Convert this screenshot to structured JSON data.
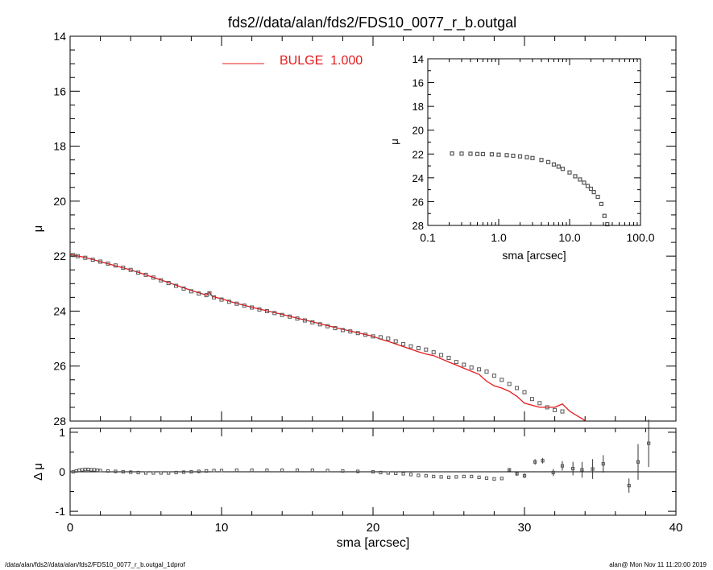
{
  "title": "fds2//data/alan/fds2/FDS10_0077_r_b.outgal",
  "footer": {
    "left": "/data/alan/fds2//data/alan/fds2/FDS10_0077_r_b.outgal_1dprof",
    "right": "alan@  Mon Nov 11 11:20:00 2019"
  },
  "colors": {
    "model": "#e8191c",
    "data": "#555555",
    "axes": "#000000"
  },
  "chart_data": [
    {
      "id": "main",
      "type": "scatter",
      "xlabel": "",
      "ylabel": "μ",
      "xlim": [
        0,
        40
      ],
      "ylim": [
        28,
        14
      ],
      "yticks": [
        14,
        16,
        18,
        20,
        22,
        24,
        26,
        28
      ],
      "ytick_labels": [
        "14",
        "16",
        "18",
        "20",
        "22",
        "24",
        "26",
        "28"
      ],
      "legend": {
        "position": "top-left",
        "label": "BULGE  1.000"
      },
      "series": [
        {
          "kind": "data-points",
          "x": [
            0.2,
            0.5,
            1.0,
            1.5,
            2.0,
            2.5,
            3.0,
            3.5,
            4.0,
            4.5,
            5.0,
            5.5,
            6.0,
            6.5,
            7.0,
            7.5,
            8.0,
            8.5,
            9.0,
            9.2,
            9.5,
            10.0,
            10.5,
            11.0,
            11.5,
            12.0,
            12.5,
            13.0,
            13.5,
            14.0,
            14.5,
            15.0,
            15.5,
            16.0,
            16.5,
            17.0,
            17.5,
            18.0,
            18.5,
            19.0,
            19.5,
            20.0,
            20.5,
            21.0,
            21.5,
            22.0,
            22.5,
            23.0,
            23.5,
            24.0,
            24.5,
            25.0,
            25.5,
            26.0,
            26.5,
            27.0,
            27.5,
            28.0,
            28.5,
            29.0,
            29.5,
            30.0,
            30.5,
            31.0,
            31.5,
            32.0,
            32.5
          ],
          "y": [
            21.96,
            22.0,
            22.06,
            22.13,
            22.2,
            22.27,
            22.34,
            22.42,
            22.5,
            22.6,
            22.68,
            22.78,
            22.88,
            22.98,
            23.08,
            23.18,
            23.28,
            23.36,
            23.42,
            23.35,
            23.5,
            23.58,
            23.66,
            23.73,
            23.8,
            23.87,
            23.94,
            24.0,
            24.07,
            24.14,
            24.2,
            24.27,
            24.34,
            24.41,
            24.48,
            24.55,
            24.62,
            24.69,
            24.74,
            24.8,
            24.86,
            24.92,
            24.95,
            25.0,
            25.1,
            25.2,
            25.28,
            25.35,
            25.4,
            25.5,
            25.6,
            25.7,
            25.85,
            25.95,
            26.05,
            26.12,
            26.2,
            26.35,
            26.5,
            26.65,
            26.8,
            26.95,
            27.2,
            27.35,
            27.5,
            27.6,
            27.65
          ]
        },
        {
          "kind": "model-line",
          "name": "BULGE",
          "x": [
            0.0,
            1.0,
            2.0,
            3.0,
            4.0,
            5.0,
            6.0,
            7.0,
            8.0,
            9.0,
            9.2,
            9.4,
            10.0,
            11.0,
            12.0,
            13.0,
            14.0,
            15.0,
            16.0,
            17.0,
            18.0,
            19.0,
            20.0,
            20.5,
            21.0,
            22.0,
            23.0,
            23.5,
            24.0,
            25.0,
            26.0,
            27.0,
            27.5,
            28.0,
            28.5,
            29.0,
            29.5,
            30.0,
            31.0,
            32.0,
            32.5,
            33.0,
            34.0
          ],
          "y": [
            21.93,
            22.05,
            22.2,
            22.35,
            22.5,
            22.68,
            22.87,
            23.06,
            23.25,
            23.42,
            23.32,
            23.47,
            23.55,
            23.72,
            23.86,
            23.99,
            24.12,
            24.26,
            24.39,
            24.53,
            24.66,
            24.79,
            24.92,
            25.02,
            25.1,
            25.29,
            25.48,
            25.56,
            25.62,
            25.85,
            26.08,
            26.3,
            26.55,
            26.72,
            26.8,
            26.92,
            27.1,
            27.35,
            27.5,
            27.5,
            27.38,
            27.65,
            27.98
          ]
        }
      ]
    },
    {
      "id": "inset",
      "type": "scatter",
      "xlabel": "sma [arcsec]",
      "ylabel": "μ",
      "xscale": "log",
      "xlim": [
        0.1,
        100.0
      ],
      "ylim": [
        28,
        14
      ],
      "xticks": [
        0.1,
        1.0,
        10.0,
        100.0
      ],
      "xtick_labels": [
        "0.1",
        "1.0",
        "10.0",
        "100.0"
      ],
      "yticks": [
        14,
        16,
        18,
        20,
        22,
        24,
        26,
        28
      ],
      "ytick_labels": [
        "14",
        "16",
        "18",
        "20",
        "22",
        "24",
        "26",
        "28"
      ],
      "series": [
        {
          "kind": "data-points",
          "x": [
            0.22,
            0.3,
            0.4,
            0.5,
            0.6,
            0.8,
            1.0,
            1.3,
            1.6,
            2.0,
            2.5,
            3.0,
            4.0,
            5.0,
            6.0,
            7.0,
            8.0,
            10.0,
            12.0,
            14.0,
            16.0,
            18.0,
            20.0,
            22.0,
            25.0,
            28.0,
            31.0,
            34.0
          ],
          "y": [
            21.96,
            21.97,
            21.98,
            22.0,
            22.01,
            22.03,
            22.06,
            22.1,
            22.15,
            22.2,
            22.27,
            22.34,
            22.5,
            22.68,
            22.88,
            23.06,
            23.25,
            23.55,
            23.87,
            24.14,
            24.41,
            24.69,
            24.92,
            25.2,
            25.6,
            26.2,
            27.2,
            27.9
          ]
        }
      ]
    },
    {
      "id": "residual",
      "type": "scatter",
      "xlabel": "sma [arcsec]",
      "ylabel": "Δ μ",
      "xlim": [
        0,
        40
      ],
      "ylim": [
        -1.1,
        1.1
      ],
      "xticks": [
        0,
        10,
        20,
        30,
        40
      ],
      "xtick_labels": [
        "0",
        "10",
        "20",
        "30",
        "40"
      ],
      "yticks": [
        1,
        0,
        -1
      ],
      "ytick_labels": [
        "1",
        "0",
        "-1"
      ],
      "zero_line": true,
      "series": [
        {
          "kind": "residual-points",
          "x": [
            0.2,
            0.4,
            0.6,
            0.8,
            1.0,
            1.2,
            1.4,
            1.6,
            1.8,
            2.0,
            2.5,
            3.0,
            3.5,
            4.0,
            4.5,
            5.0,
            5.5,
            6.0,
            6.5,
            7.0,
            7.5,
            8.0,
            8.5,
            9.0,
            9.5,
            10.0,
            11.0,
            12.0,
            13.0,
            14.0,
            15.0,
            16.0,
            17.0,
            18.0,
            19.0,
            20.0,
            20.5,
            21.0,
            21.5,
            22.0,
            22.5,
            23.0,
            23.5,
            24.0,
            24.5,
            25.0,
            25.5,
            26.0,
            26.5,
            27.0,
            27.5,
            28.0,
            28.5
          ],
          "y": [
            0.0,
            0.02,
            0.04,
            0.05,
            0.06,
            0.06,
            0.05,
            0.05,
            0.04,
            0.03,
            0.02,
            0.01,
            0.0,
            -0.01,
            -0.02,
            -0.03,
            -0.03,
            -0.03,
            -0.03,
            -0.02,
            -0.01,
            0.0,
            0.01,
            0.02,
            0.03,
            0.03,
            0.04,
            0.04,
            0.04,
            0.04,
            0.04,
            0.04,
            0.03,
            0.02,
            0.01,
            0.0,
            -0.02,
            -0.03,
            -0.04,
            -0.05,
            -0.07,
            -0.09,
            -0.1,
            -0.12,
            -0.13,
            -0.14,
            -0.13,
            -0.12,
            -0.12,
            -0.14,
            -0.16,
            -0.18,
            -0.17
          ],
          "error": []
        },
        {
          "kind": "residual-points-with-errors",
          "x": [
            29.0,
            29.5,
            30.0,
            30.7,
            31.2,
            31.9,
            32.5,
            33.2,
            33.8,
            34.5,
            35.2,
            36.9,
            37.5,
            38.2
          ],
          "y": [
            0.05,
            -0.05,
            -0.1,
            0.25,
            0.28,
            -0.02,
            0.15,
            0.08,
            0.05,
            0.07,
            0.2,
            -0.35,
            0.25,
            0.72
          ],
          "error": [
            0.03,
            0.05,
            0.06,
            0.07,
            0.07,
            0.09,
            0.12,
            0.17,
            0.2,
            0.25,
            0.22,
            0.18,
            0.45,
            0.6
          ]
        }
      ]
    }
  ]
}
